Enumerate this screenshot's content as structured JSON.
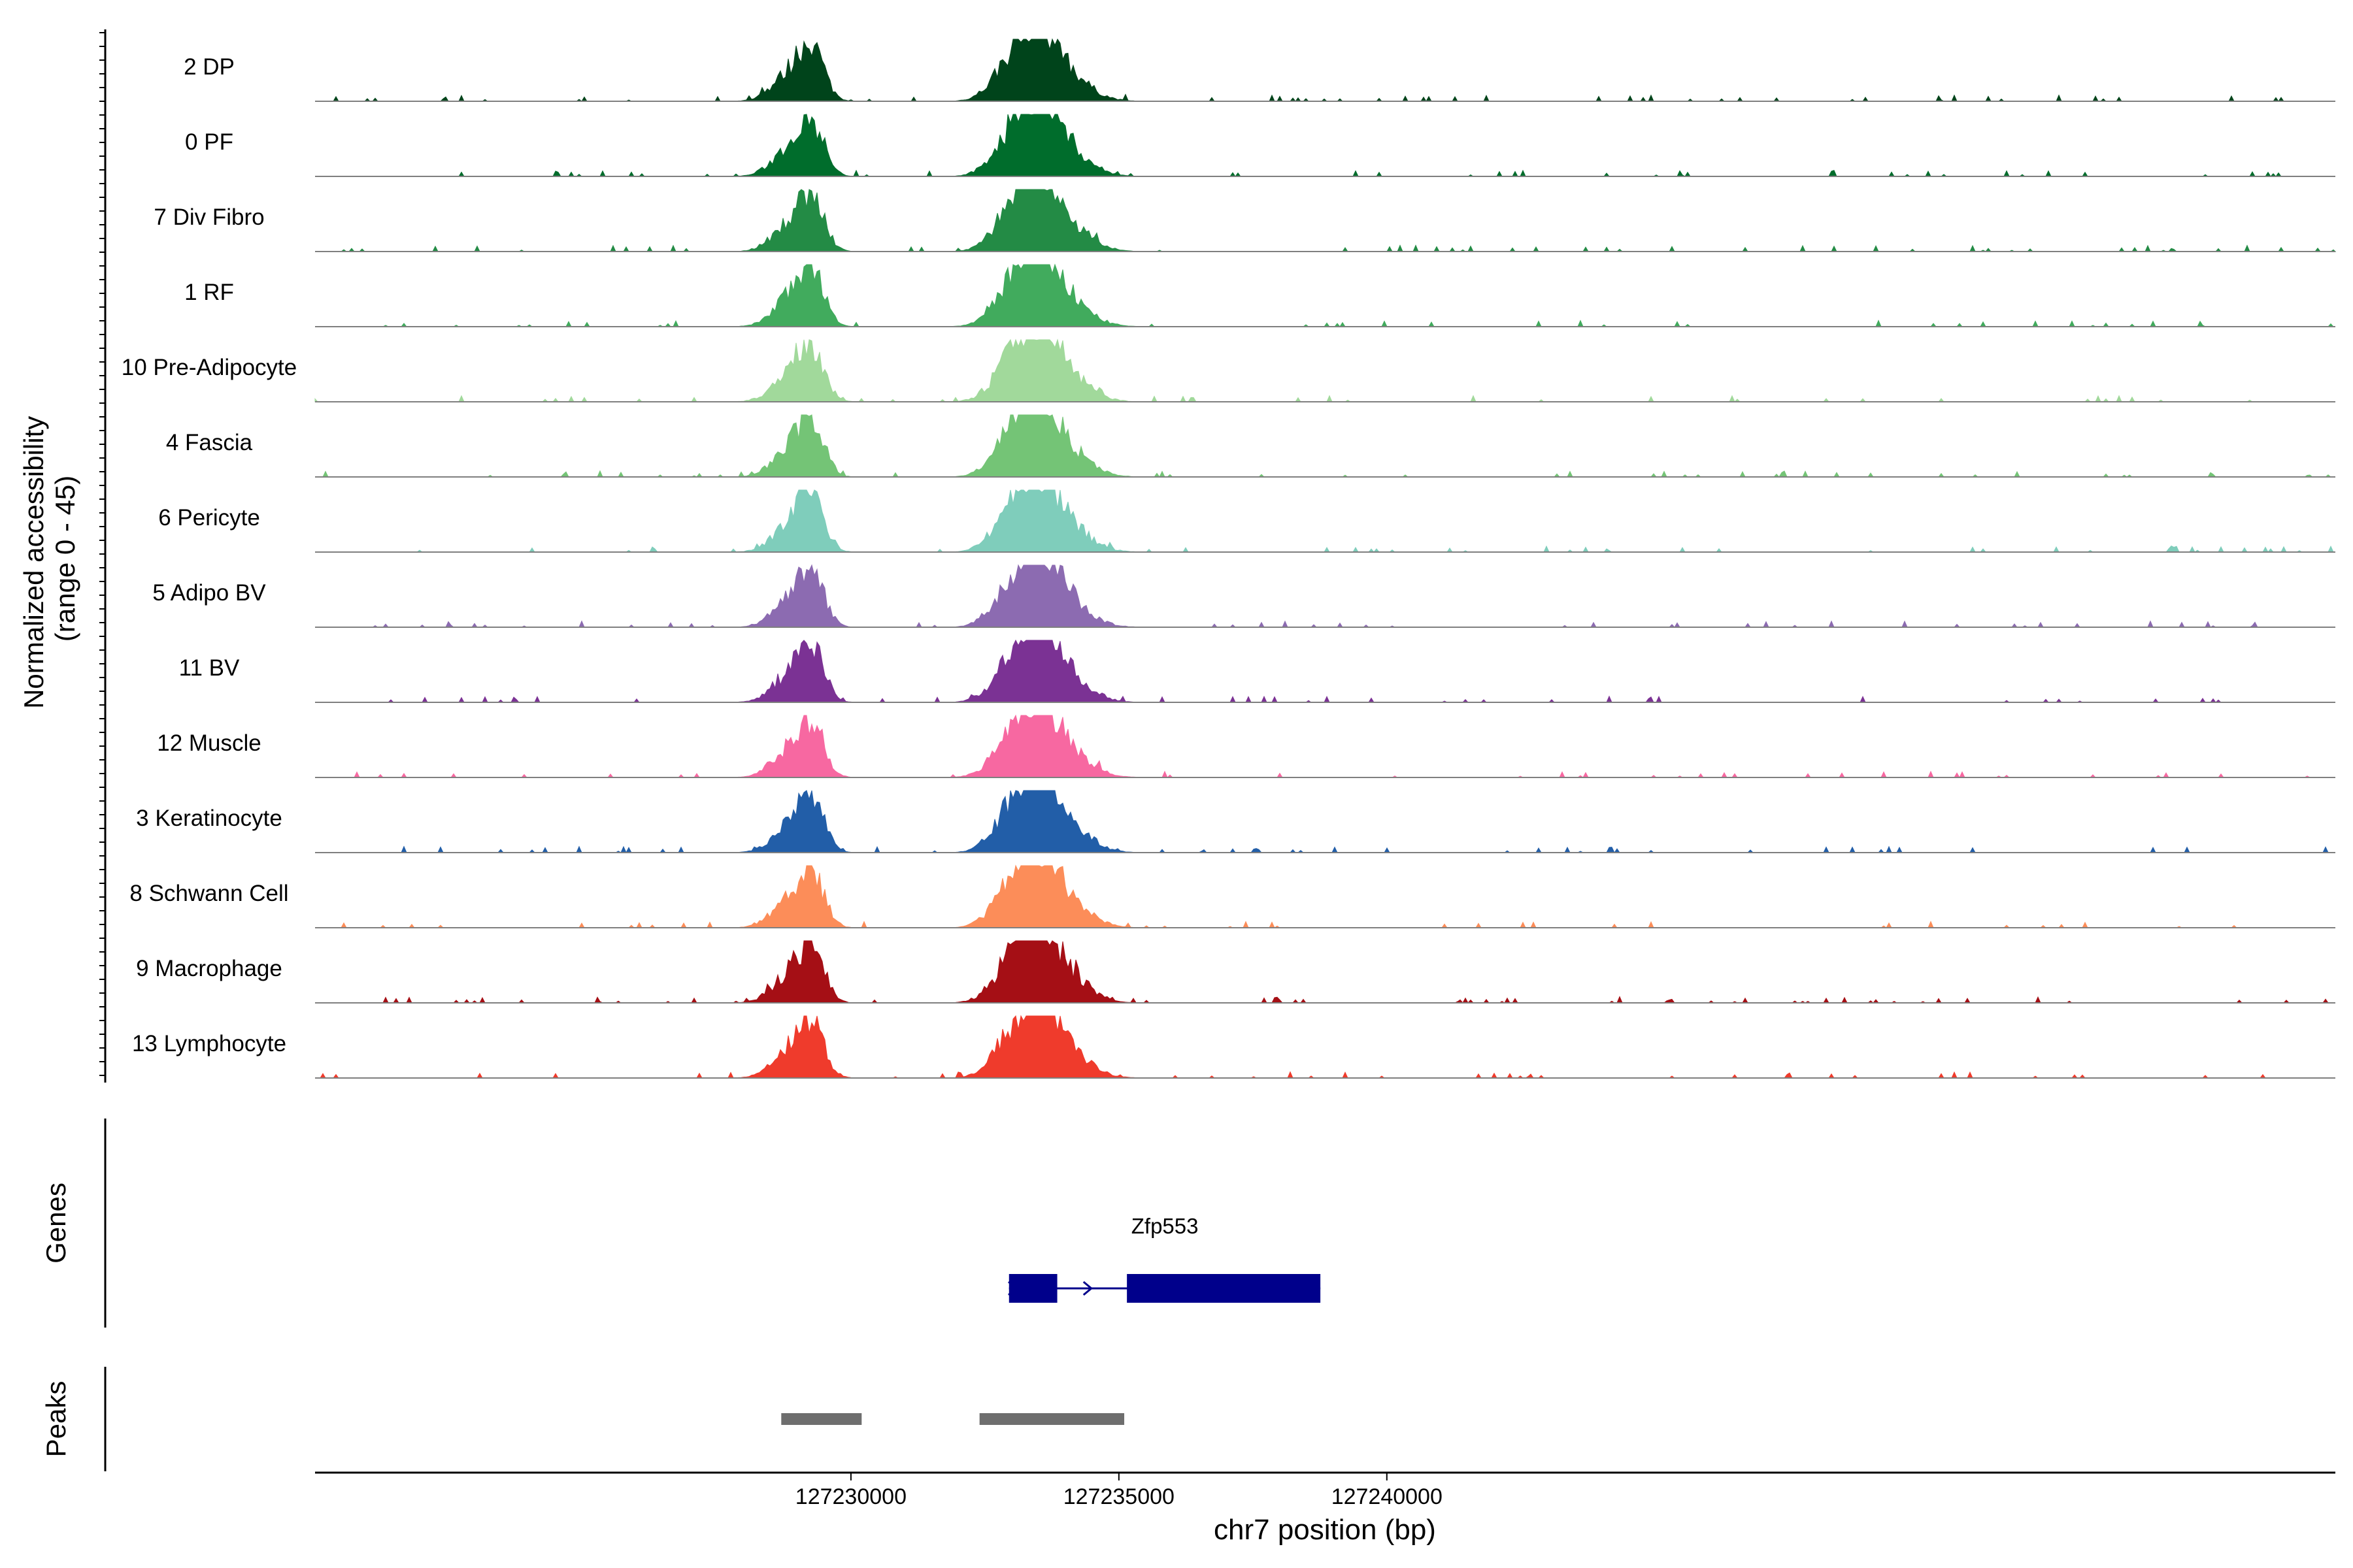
{
  "chart_data": {
    "type": "area",
    "title": "",
    "coverage": {
      "ylabel_line1": "Normalized accessibility",
      "ylabel_line2": "(range 0 - 45)",
      "ylim": [
        0,
        45
      ],
      "tracks": [
        {
          "name": "2 DP",
          "color": "#00441b"
        },
        {
          "name": "0 PF",
          "color": "#006d2c"
        },
        {
          "name": "7 Div Fibro",
          "color": "#238b45"
        },
        {
          "name": "1 RF",
          "color": "#41ab5d"
        },
        {
          "name": "10 Pre-Adipocyte",
          "color": "#a1d99b"
        },
        {
          "name": "4 Fascia",
          "color": "#74c476"
        },
        {
          "name": "6 Pericyte",
          "color": "#7fcdbb"
        },
        {
          "name": "5 Adipo BV",
          "color": "#8c6bb1"
        },
        {
          "name": "11 BV",
          "color": "#7b3294"
        },
        {
          "name": "12 Muscle",
          "color": "#f768a1"
        },
        {
          "name": "3 Keratinocyte",
          "color": "#225ea8"
        },
        {
          "name": "8 Schwann Cell",
          "color": "#fc8d59"
        },
        {
          "name": "9 Macrophage",
          "color": "#a50f15"
        },
        {
          "name": "13 Lymphocyte",
          "color": "#ef3b2c"
        }
      ]
    },
    "genes": {
      "label": "Genes",
      "color": "#00008b",
      "items": [
        {
          "name": "Zfp553",
          "start": 127232950,
          "end": 127238760,
          "strand": "+",
          "exons": [
            [
              127232950,
              127233850
            ],
            [
              127235150,
              127238760
            ]
          ]
        }
      ]
    },
    "peaks": {
      "label": "Peaks",
      "color": "#6e6e6e",
      "regions": [
        [
          127228700,
          127230200
        ],
        [
          127232400,
          127235100
        ]
      ]
    },
    "x_axis": {
      "label": "chr7 position (bp)",
      "xlim": [
        127220000,
        127257700
      ],
      "ticks": [
        127230000,
        127235000,
        127240000
      ],
      "tick_labels": [
        "127230000",
        "127235000",
        "127240000"
      ]
    }
  }
}
